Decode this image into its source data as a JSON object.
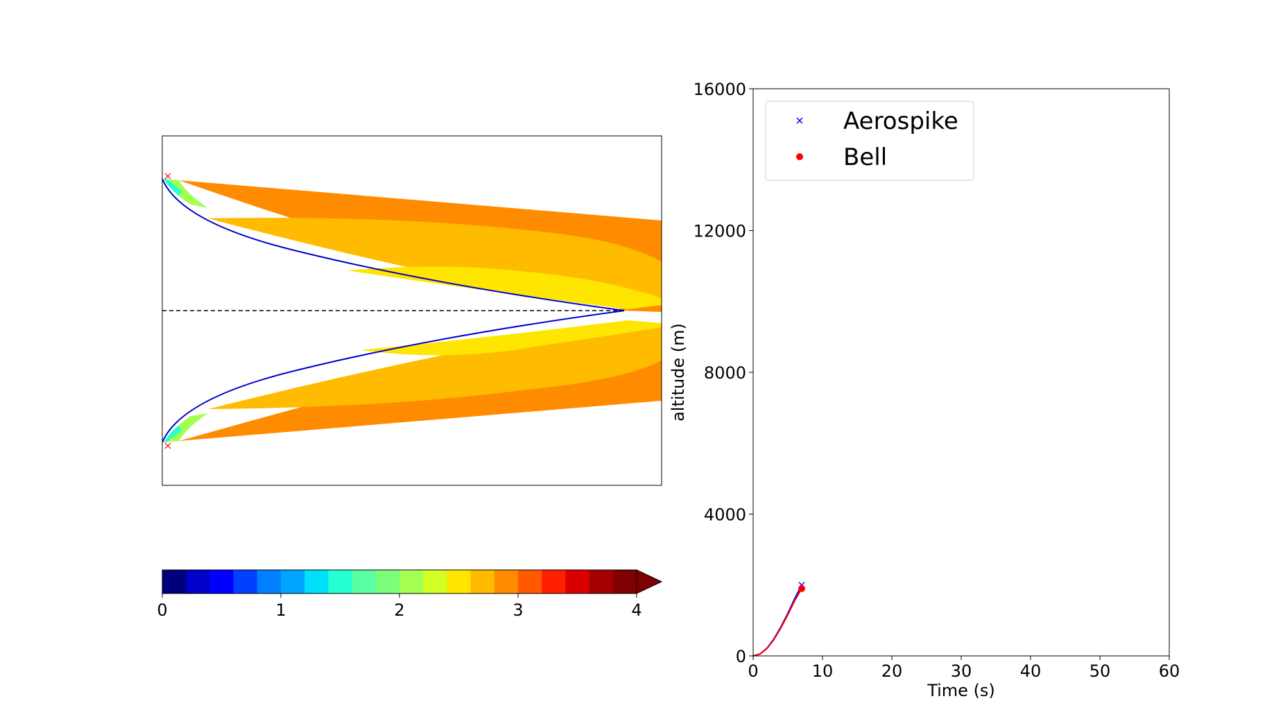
{
  "chart_data": [
    {
      "type": "heatmap",
      "title": "",
      "description_axis": "nozzle contour with colour-filled field",
      "colorbar": {
        "min": 0,
        "max": 4,
        "levels": 20,
        "ticks": [
          "0",
          "1",
          "2",
          "3",
          "4"
        ],
        "extend": "max",
        "colors": [
          "#00007f",
          "#0000c8",
          "#0000ff",
          "#0040ff",
          "#0080ff",
          "#00a4ff",
          "#00e0fb",
          "#26ffd1",
          "#59ffa0",
          "#7dff7a",
          "#a4ff53",
          "#d1ff26",
          "#ffe600",
          "#ffbb00",
          "#ff8c00",
          "#ff5a00",
          "#ff2000",
          "#db0000",
          "#a40000",
          "#7f0000"
        ]
      },
      "markers": [
        {
          "symbol": "x",
          "color": "#ff0000"
        },
        {
          "symbol": "x",
          "color": "#ff0000"
        }
      ],
      "contour_color": "#0000cd",
      "centerline_style": "dashed"
    },
    {
      "type": "line",
      "xlabel": "Time (s)",
      "ylabel": "altitude (m)",
      "xlim": [
        0,
        60
      ],
      "ylim": [
        0,
        16000
      ],
      "xticks": [
        "0",
        "10",
        "20",
        "30",
        "40",
        "50",
        "60"
      ],
      "yticks": [
        "0",
        "4000",
        "8000",
        "12000",
        "16000"
      ],
      "legend": {
        "placement": "upper-left"
      },
      "series": [
        {
          "name": "Aerospike",
          "color": "#0000ff",
          "marker": "x",
          "x": [
            0,
            1,
            2,
            3,
            4,
            5,
            6,
            7
          ],
          "y": [
            0,
            55,
            220,
            480,
            820,
            1200,
            1620,
            2000
          ]
        },
        {
          "name": "Bell",
          "color": "#ff0000",
          "marker": "o",
          "x": [
            0,
            1,
            2,
            3,
            4,
            5,
            6,
            7
          ],
          "y": [
            0,
            52,
            210,
            460,
            790,
            1160,
            1560,
            1900
          ]
        }
      ]
    }
  ]
}
